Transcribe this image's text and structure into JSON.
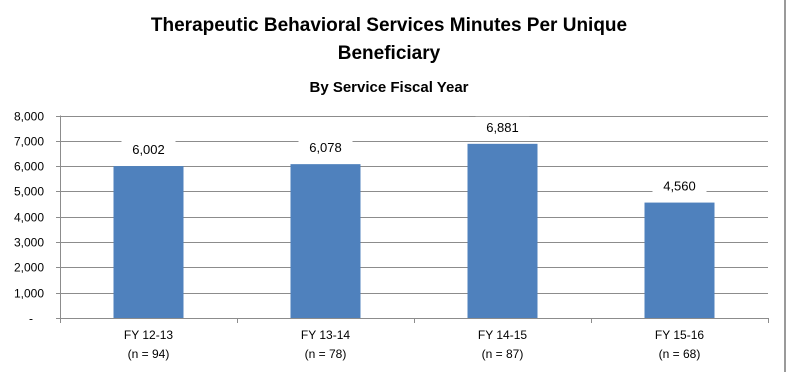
{
  "chart_data": {
    "type": "bar",
    "title": "Therapeutic Behavioral Services Minutes Per Unique Beneficiary",
    "title_lines": [
      "Therapeutic Behavioral Services Minutes Per Unique",
      "Beneficiary"
    ],
    "subtitle": "By Service Fiscal Year",
    "categories": [
      "FY 12-13",
      "FY 13-14",
      "FY 14-15",
      "FY 15-16"
    ],
    "category_sublabels": [
      "(n = 94)",
      "(n = 78)",
      "(n = 87)",
      "(n = 68)"
    ],
    "values": [
      6002,
      6078,
      6881,
      4560
    ],
    "data_labels": [
      "6,002",
      "6,078",
      "6,881",
      "4,560"
    ],
    "yticks": [
      0,
      1000,
      2000,
      3000,
      4000,
      5000,
      6000,
      7000,
      8000
    ],
    "ytick_labels": [
      "-",
      "1,000",
      "2,000",
      "3,000",
      "4,000",
      "5,000",
      "6,000",
      "7,000",
      "8,000"
    ],
    "ylim": [
      0,
      8000
    ],
    "xlabel": "",
    "ylabel": "",
    "grid": true,
    "legend": "none",
    "colors": {
      "bar": "#4f81bd",
      "grid": "#8c8c8c",
      "axis": "#8c8c8c"
    }
  }
}
